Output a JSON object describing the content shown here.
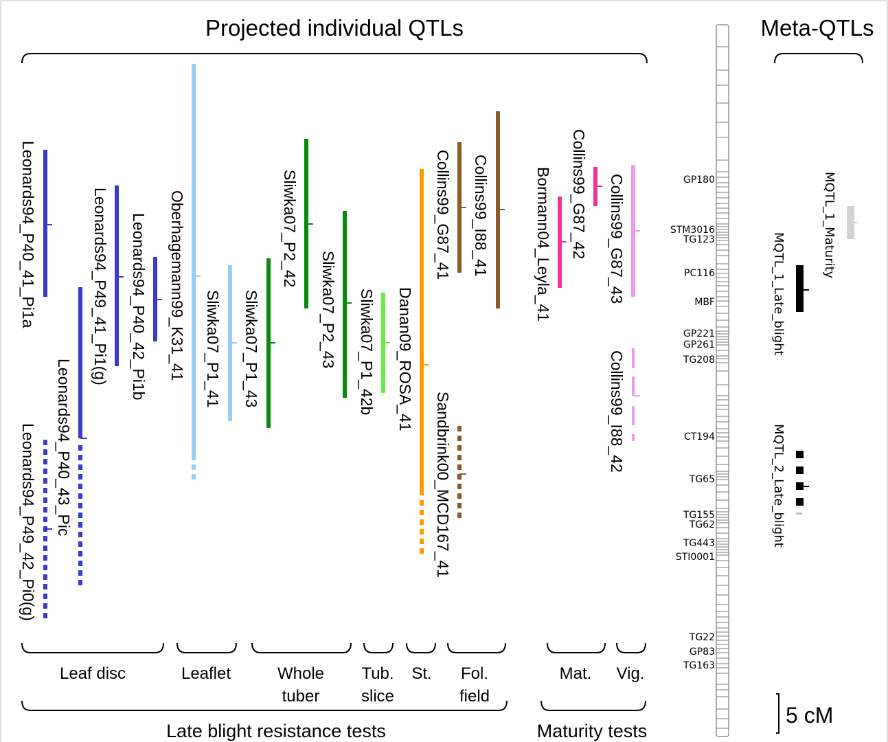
{
  "header": {
    "left_title": "Projected individual QTLs",
    "right_title": "Meta-QTLs"
  },
  "qtls": [
    {
      "label": "Leonards94_P40_41_Pi1a",
      "color": "#3a3acc",
      "style": "solid",
      "group": "Leaf disc"
    },
    {
      "label": "Leonards94_P40_43_Pic",
      "color": "#3a3acc",
      "style": "solid+dotted",
      "group": "Leaf disc"
    },
    {
      "label": "Leonards94_P49_41_Pi1(g)",
      "color": "#3a3acc",
      "style": "solid",
      "group": "Leaf disc"
    },
    {
      "label": "Leonards94_P40_42_Pi1b",
      "color": "#3a3acc",
      "style": "solid",
      "group": "Leaf disc"
    },
    {
      "label": "Leonards94_P49_42_Pi0(g)",
      "color": "#3a3acc",
      "style": "dotted",
      "group": "Leaf disc"
    },
    {
      "label": "Oberhagemann99_K31_41",
      "color": "#99ccf5",
      "style": "solid+dotted",
      "group": "Leaflet"
    },
    {
      "label": "Sliwka07_P1_41",
      "color": "#99ccf5",
      "style": "solid",
      "group": "Leaflet"
    },
    {
      "label": "Sliwka07_P1_43",
      "color": "#0a8a0a",
      "style": "solid",
      "group": "Whole tuber"
    },
    {
      "label": "Sliwka07_P2_42",
      "color": "#0a8a0a",
      "style": "solid",
      "group": "Whole tuber"
    },
    {
      "label": "Sliwka07_P2_43",
      "color": "#0a8a0a",
      "style": "solid",
      "group": "Whole tuber"
    },
    {
      "label": "Sliwka07_P1_42b",
      "color": "#66ee44",
      "style": "solid",
      "group": "Tub. slice"
    },
    {
      "label": "Danan09_ROSA_41",
      "color": "#ff9900",
      "style": "solid+dotted",
      "group": "St."
    },
    {
      "label": "Collins99_G87_41",
      "color": "#8b5a2b",
      "style": "solid",
      "group": "Fol. field"
    },
    {
      "label": "Collins99_I88_41",
      "color": "#8b5a2b",
      "style": "solid",
      "group": "Fol. field"
    },
    {
      "label": "Sandbrink00_MCD167_41",
      "color": "#8b5a2b",
      "style": "dotted",
      "group": "Fol. field"
    },
    {
      "label": "Bormann04_Leyla_41",
      "color": "#ee3399",
      "style": "solid",
      "group": "Mat."
    },
    {
      "label": "Collins99_G87_42",
      "color": "#ee3399",
      "style": "solid",
      "group": "Mat."
    },
    {
      "label": "Collins99_G87_43",
      "color": "#ee99ee",
      "style": "solid",
      "group": "Vig."
    },
    {
      "label": "Collins99_I88_42",
      "color": "#ee99ee",
      "style": "dashed",
      "group": "Vig."
    }
  ],
  "test_groups": [
    {
      "l1": "Leaf disc",
      "l2": ""
    },
    {
      "l1": "Leaflet",
      "l2": ""
    },
    {
      "l1": "Whole",
      "l2": "tuber"
    },
    {
      "l1": "Tub.",
      "l2": "slice"
    },
    {
      "l1": "St.",
      "l2": ""
    },
    {
      "l1": "Fol.",
      "l2": "field"
    },
    {
      "l1": "Mat.",
      "l2": ""
    },
    {
      "l1": "Vig.",
      "l2": ""
    }
  ],
  "bottom_labels": {
    "late_blight": "Late blight resistance tests",
    "maturity": "Maturity tests"
  },
  "markers": [
    "GP180",
    "STM3016",
    "TG123",
    "PC116",
    "MBF",
    "GP221",
    "GP261",
    "TG208",
    "CT194",
    "TG65",
    "TG155",
    "TG62",
    "TG443",
    "STI0001",
    "TG22",
    "GP83",
    "TG163"
  ],
  "meta_qtls": [
    {
      "label": "MQTL_1_Maturity",
      "color": "#d3d3d3"
    },
    {
      "label": "MQTL_1_Late_blight",
      "color": "#000000"
    },
    {
      "label": "MQTL_2_Late_blight",
      "color": "#000000"
    }
  ],
  "scale_bar": "5 cM"
}
